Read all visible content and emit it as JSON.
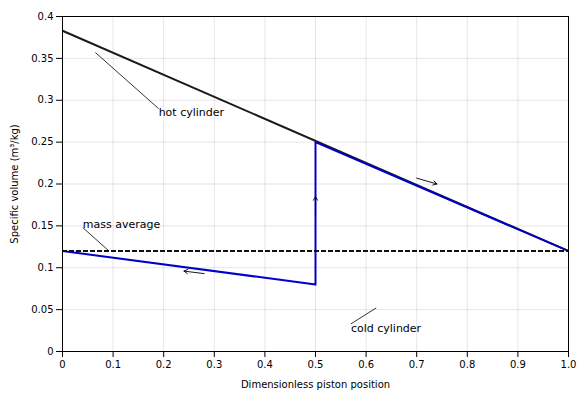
{
  "chart_data": {
    "type": "line",
    "xlabel": "Dimensionless piston position",
    "ylabel": "Specific volume (m³/kg)",
    "xlim": [
      0,
      1.0
    ],
    "ylim": [
      0,
      0.4
    ],
    "xticks": [
      0,
      0.1,
      0.2,
      0.3,
      0.4,
      0.5,
      0.6,
      0.7,
      0.8,
      0.9,
      {
        "value": 1.0,
        "label": "1.0"
      }
    ],
    "yticks": [
      0,
      0.05,
      0.1,
      0.15,
      0.2,
      0.25,
      0.3,
      0.35,
      0.4
    ],
    "grid": true,
    "series": [
      {
        "color": "#1a1a1a",
        "x": [
          0,
          1
        ],
        "values": [
          0.383,
          0.12
        ]
      },
      {
        "color": "#0000cc",
        "x": [
          0,
          0.5,
          0.5,
          1.0
        ],
        "values": [
          0.12,
          0.08,
          0.25,
          0.12
        ]
      },
      {
        "type": "hline",
        "color": "#111111",
        "line_style": "dashed",
        "values": [
          0.12
        ]
      }
    ],
    "annotations": [
      {
        "text": "hot cylinder",
        "xy": [
          0.065,
          0.357
        ],
        "xytext": [
          0.19,
          0.29
        ]
      },
      {
        "text": "cold cylinder",
        "xy": [
          0.62,
          0.052
        ],
        "xytext": [
          0.57,
          0.033
        ]
      },
      {
        "text": "mass average",
        "xy": [
          0.09,
          0.121
        ],
        "xytext": [
          0.04,
          0.148
        ]
      }
    ],
    "arrows": [
      {
        "from": [
          0.28,
          0.093
        ],
        "to": [
          0.24,
          0.096
        ]
      },
      {
        "from": [
          0.5,
          0.162
        ],
        "to": [
          0.5,
          0.185
        ]
      },
      {
        "from": [
          0.7,
          0.207
        ],
        "to": [
          0.74,
          0.2
        ]
      }
    ]
  }
}
